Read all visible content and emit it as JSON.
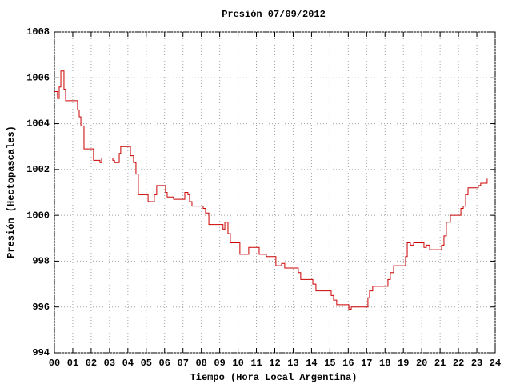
{
  "chart_data": {
    "type": "line",
    "step": true,
    "title": "Presión 07/09/2012",
    "xlabel": "Tiempo (Hora Local Argentina)",
    "ylabel": "Presión (Hectopascales)",
    "grid": true,
    "series": [
      {
        "color": "#cc0000",
        "x": [
          0.0,
          0.17,
          0.26,
          0.35,
          0.52,
          0.61,
          1.26,
          1.35,
          1.44,
          1.61,
          2.13,
          2.48,
          2.57,
          3.18,
          3.27,
          3.53,
          3.61,
          4.14,
          4.31,
          4.44,
          4.57,
          5.1,
          5.44,
          5.57,
          6.05,
          6.14,
          6.49,
          7.1,
          7.27,
          7.36,
          7.49,
          8.1,
          8.23,
          8.41,
          9.18,
          9.28,
          9.45,
          9.58,
          10.1,
          10.58,
          11.15,
          11.54,
          12.06,
          12.37,
          12.54,
          13.28,
          13.41,
          14.07,
          14.24,
          15.07,
          15.2,
          15.37,
          16.03,
          16.16,
          17.07,
          17.16,
          17.33,
          18.16,
          18.29,
          18.47,
          19.12,
          19.21,
          19.38,
          19.56,
          20.12,
          20.25,
          20.43,
          21.08,
          21.21,
          21.34,
          21.56,
          22.13,
          22.26,
          22.39,
          22.52,
          23.08,
          23.21,
          23.56
        ],
        "values": [
          1005.4,
          1005.1,
          1005.6,
          1006.3,
          1005.5,
          1005.0,
          1004.6,
          1004.3,
          1003.9,
          1002.9,
          1002.4,
          1002.3,
          1002.5,
          1002.4,
          1002.3,
          1002.7,
          1003.0,
          1002.6,
          1002.3,
          1001.8,
          1000.9,
          1000.6,
          1000.9,
          1001.3,
          1001.0,
          1000.8,
          1000.7,
          1001.0,
          1000.9,
          1000.6,
          1000.4,
          1000.3,
          1000.1,
          999.6,
          999.4,
          999.7,
          999.2,
          998.8,
          998.3,
          998.6,
          998.3,
          998.2,
          997.8,
          997.9,
          997.7,
          997.5,
          997.2,
          997.0,
          996.7,
          996.5,
          996.3,
          996.1,
          995.9,
          996.0,
          996.4,
          996.7,
          996.9,
          997.2,
          997.5,
          997.8,
          998.2,
          998.8,
          998.7,
          998.8,
          998.6,
          998.7,
          998.5,
          998.7,
          999.1,
          999.7,
          1000.0,
          1000.3,
          1000.4,
          1000.9,
          1001.2,
          1001.3,
          1001.4,
          1001.6
        ]
      }
    ],
    "xlim": [
      0,
      24
    ],
    "xticks": [
      {
        "value": 0,
        "label": "00"
      },
      {
        "value": 1,
        "label": "01"
      },
      {
        "value": 2,
        "label": "02"
      },
      {
        "value": 3,
        "label": "03"
      },
      {
        "value": 4,
        "label": "04"
      },
      {
        "value": 5,
        "label": "05"
      },
      {
        "value": 6,
        "label": "06"
      },
      {
        "value": 7,
        "label": "07"
      },
      {
        "value": 8,
        "label": "08"
      },
      {
        "value": 9,
        "label": "09"
      },
      10,
      11,
      12,
      13,
      14,
      15,
      16,
      17,
      18,
      19,
      20,
      21,
      22,
      23,
      24
    ],
    "ylim": [
      994,
      1008
    ],
    "yticks": [
      994,
      996,
      998,
      1000,
      1002,
      1004,
      1006,
      1008
    ]
  }
}
